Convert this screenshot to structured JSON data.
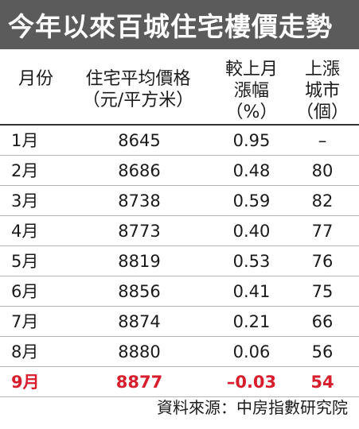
{
  "title": "今年以來百城住宅樓價走勢",
  "headers": {
    "month": "月份",
    "price_line1": "住宅平均價格",
    "price_line2": "（元/平方米）",
    "change_line1": "較上月",
    "change_line2": "漲幅",
    "change_line3": "（%）",
    "cities_line1": "上漲",
    "cities_line2": "城市",
    "cities_line3": "（個）"
  },
  "rows": [
    {
      "month": "1月",
      "price": "8645",
      "change": "0.95",
      "cities": "–"
    },
    {
      "month": "2月",
      "price": "8686",
      "change": "0.48",
      "cities": "80"
    },
    {
      "month": "3月",
      "price": "8738",
      "change": "0.59",
      "cities": "82"
    },
    {
      "month": "4月",
      "price": "8773",
      "change": "0.40",
      "cities": "77"
    },
    {
      "month": "5月",
      "price": "8819",
      "change": "0.53",
      "cities": "76"
    },
    {
      "month": "6月",
      "price": "8856",
      "change": "0.41",
      "cities": "75"
    },
    {
      "month": "7月",
      "price": "8874",
      "change": "0.21",
      "cities": "66"
    },
    {
      "month": "8月",
      "price": "8880",
      "change": "0.06",
      "cities": "56"
    },
    {
      "month": "9月",
      "price": "8877",
      "change": "–0.03",
      "cities": "54"
    }
  ],
  "highlight_color": "#d81e2c",
  "title_bg_color": "#5b5b5b",
  "source": "資料來源：中房指數研究院"
}
